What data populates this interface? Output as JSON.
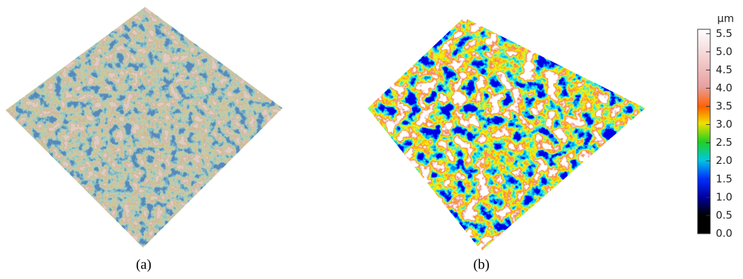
{
  "panels": [
    {
      "label": "(a)"
    },
    {
      "label": "(b)"
    }
  ],
  "colorbar": {
    "unit": "μm",
    "lim": [
      0,
      5.62
    ],
    "ticks": [
      {
        "value": 0,
        "label": "0.0"
      },
      {
        "value": 0.5,
        "label": "0.5"
      },
      {
        "value": 1,
        "label": "1.0"
      },
      {
        "value": 1.5,
        "label": "1.5"
      },
      {
        "value": 2,
        "label": "2.0"
      },
      {
        "value": 2.5,
        "label": "2.5"
      },
      {
        "value": 3,
        "label": "3.0"
      },
      {
        "value": 3.5,
        "label": "3.5"
      },
      {
        "value": 4,
        "label": "4.0"
      },
      {
        "value": 4.5,
        "label": "4.5"
      },
      {
        "value": 5,
        "label": "5.0"
      },
      {
        "value": 5.5,
        "label": "5.5"
      }
    ]
  }
}
